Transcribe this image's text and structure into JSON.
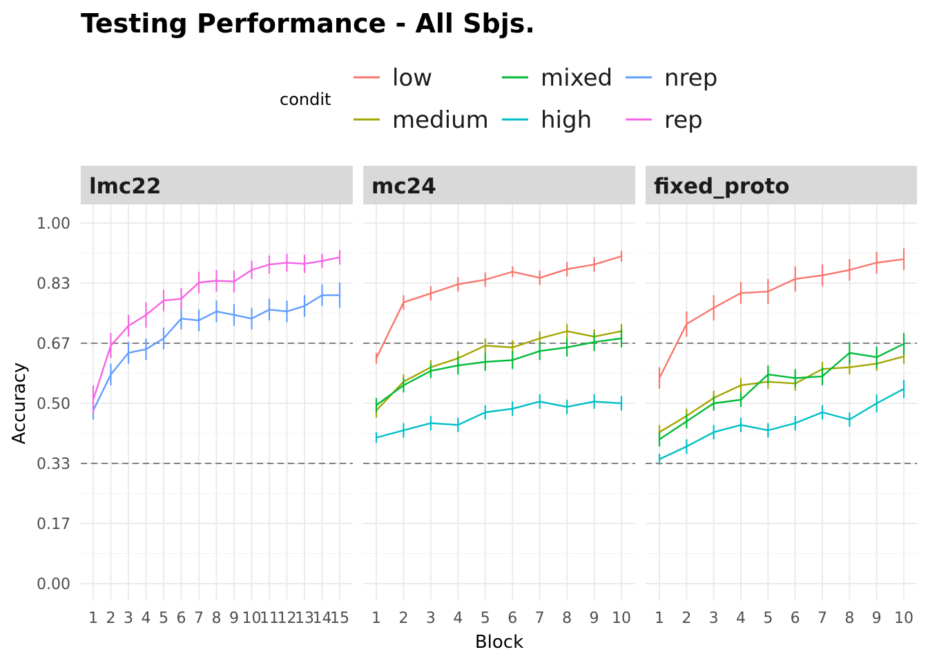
{
  "chart_data": {
    "type": "line",
    "title": "Testing Performance - All Sbjs.",
    "xlabel": "Block",
    "ylabel": "Accuracy",
    "ylim": [
      0,
      1
    ],
    "yticks": [
      "0.00",
      "0.17",
      "0.33",
      "0.50",
      "0.67",
      "0.83",
      "1.00"
    ],
    "ytick_values": [
      0,
      0.1667,
      0.3333,
      0.5,
      0.6667,
      0.8333,
      1
    ],
    "reference_lines": [
      0.3333,
      0.6667
    ],
    "grid": true,
    "legend": {
      "title": "condit",
      "placement": "top",
      "entries": [
        {
          "name": "low",
          "color": "#F8766D"
        },
        {
          "name": "medium",
          "color": "#A3A500"
        },
        {
          "name": "mixed",
          "color": "#00BA38"
        },
        {
          "name": "high",
          "color": "#00BFC4"
        },
        {
          "name": "nrep",
          "color": "#619CFF"
        },
        {
          "name": "rep",
          "color": "#F564E3"
        }
      ]
    },
    "panels": [
      {
        "label": "lmc22",
        "x": [
          1,
          2,
          3,
          4,
          5,
          6,
          7,
          8,
          9,
          10,
          11,
          12,
          13,
          14,
          15
        ],
        "series": [
          {
            "name": "nrep",
            "color": "#619CFF",
            "values": [
              0.48,
              0.58,
              0.64,
              0.65,
              0.68,
              0.735,
              0.73,
              0.755,
              0.745,
              0.735,
              0.76,
              0.755,
              0.77,
              0.8,
              0.8
            ],
            "errors": [
              0.025,
              0.03,
              0.03,
              0.03,
              0.03,
              0.03,
              0.03,
              0.03,
              0.03,
              0.03,
              0.03,
              0.03,
              0.03,
              0.03,
              0.035
            ]
          },
          {
            "name": "rep",
            "color": "#F564E3",
            "values": [
              0.51,
              0.66,
              0.715,
              0.745,
              0.785,
              0.79,
              0.835,
              0.84,
              0.838,
              0.87,
              0.885,
              0.89,
              0.887,
              0.895,
              0.905
            ],
            "errors": [
              0.04,
              0.035,
              0.03,
              0.035,
              0.03,
              0.03,
              0.03,
              0.03,
              0.03,
              0.025,
              0.025,
              0.025,
              0.025,
              0.02,
              0.02
            ]
          }
        ]
      },
      {
        "label": "mc24",
        "x": [
          1,
          2,
          3,
          4,
          5,
          6,
          7,
          8,
          9,
          10
        ],
        "series": [
          {
            "name": "low",
            "color": "#F8766D",
            "values": [
              0.625,
              0.78,
              0.805,
              0.83,
              0.843,
              0.865,
              0.848,
              0.872,
              0.885,
              0.908
            ],
            "errors": [
              0.015,
              0.02,
              0.02,
              0.02,
              0.02,
              0.015,
              0.02,
              0.02,
              0.02,
              0.015
            ]
          },
          {
            "name": "medium",
            "color": "#A3A500",
            "values": [
              0.48,
              0.56,
              0.6,
              0.625,
              0.66,
              0.655,
              0.68,
              0.7,
              0.685,
              0.7
            ],
            "errors": [
              0.02,
              0.02,
              0.02,
              0.02,
              0.02,
              0.02,
              0.02,
              0.02,
              0.02,
              0.02
            ]
          },
          {
            "name": "mixed",
            "color": "#00BA38",
            "values": [
              0.495,
              0.55,
              0.59,
              0.605,
              0.615,
              0.62,
              0.645,
              0.655,
              0.67,
              0.68
            ],
            "errors": [
              0.02,
              0.02,
              0.02,
              0.025,
              0.025,
              0.025,
              0.025,
              0.025,
              0.025,
              0.025
            ]
          },
          {
            "name": "high",
            "color": "#00BFC4",
            "values": [
              0.405,
              0.425,
              0.445,
              0.44,
              0.475,
              0.485,
              0.505,
              0.49,
              0.505,
              0.5
            ],
            "errors": [
              0.015,
              0.02,
              0.02,
              0.02,
              0.02,
              0.02,
              0.02,
              0.02,
              0.02,
              0.02
            ]
          }
        ]
      },
      {
        "label": "fixed_proto",
        "x": [
          1,
          2,
          3,
          4,
          5,
          6,
          7,
          8,
          9,
          10
        ],
        "series": [
          {
            "name": "low",
            "color": "#F8766D",
            "values": [
              0.57,
              0.72,
              0.765,
              0.806,
              0.81,
              0.845,
              0.855,
              0.87,
              0.89,
              0.9
            ],
            "errors": [
              0.03,
              0.035,
              0.035,
              0.03,
              0.035,
              0.035,
              0.03,
              0.03,
              0.03,
              0.03
            ]
          },
          {
            "name": "medium",
            "color": "#A3A500",
            "values": [
              0.42,
              0.465,
              0.515,
              0.55,
              0.56,
              0.555,
              0.595,
              0.6,
              0.61,
              0.63
            ],
            "errors": [
              0.02,
              0.02,
              0.02,
              0.02,
              0.02,
              0.02,
              0.02,
              0.02,
              0.02,
              0.02
            ]
          },
          {
            "name": "mixed",
            "color": "#00BA38",
            "values": [
              0.4,
              0.45,
              0.5,
              0.51,
              0.58,
              0.57,
              0.575,
              0.64,
              0.628,
              0.665
            ],
            "errors": [
              0.02,
              0.02,
              0.02,
              0.02,
              0.025,
              0.025,
              0.025,
              0.03,
              0.03,
              0.03
            ]
          },
          {
            "name": "high",
            "color": "#00BFC4",
            "values": [
              0.345,
              0.38,
              0.42,
              0.44,
              0.425,
              0.445,
              0.475,
              0.455,
              0.5,
              0.54
            ],
            "errors": [
              0.015,
              0.02,
              0.02,
              0.02,
              0.02,
              0.02,
              0.02,
              0.02,
              0.025,
              0.025
            ]
          }
        ]
      }
    ]
  }
}
